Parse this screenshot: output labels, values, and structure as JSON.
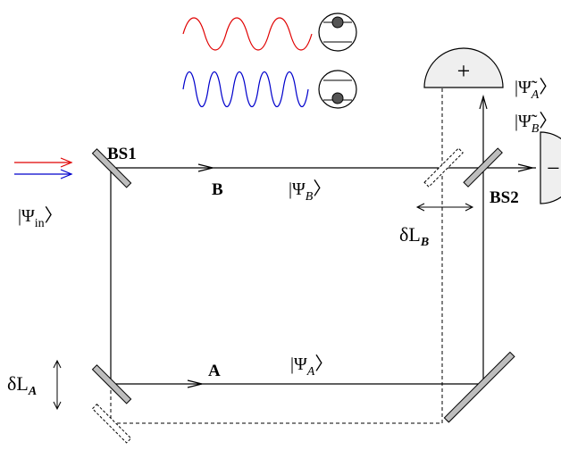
{
  "labels": {
    "bs1": "BS1",
    "bs2": "BS2",
    "arm_b": "B",
    "arm_a": "A",
    "psi_in": "|Ψin〉",
    "psi_in_ket": "|Ψ",
    "psi_in_sub": "in",
    "psi_b_ket": "|Ψ",
    "psi_b_sub": "B",
    "psi_a_ket": "|Ψ",
    "psi_a_sub": "A",
    "tilde_a_ket": "|Ψ̃",
    "tilde_a_sub": "A",
    "tilde_b_ket": "|Ψ̃",
    "tilde_b_sub": "B",
    "delta_lb": "δL",
    "delta_lb_sub": "B",
    "delta_la": "δL",
    "delta_la_sub": "A",
    "detector_plus": "+",
    "detector_minus": "−",
    "ket_close": "〉"
  },
  "colors": {
    "red": "#e00000",
    "blue": "#0000cc",
    "mirror_fill": "#bdbdbd",
    "detector_fill": "#efefef",
    "line": "#000000"
  }
}
